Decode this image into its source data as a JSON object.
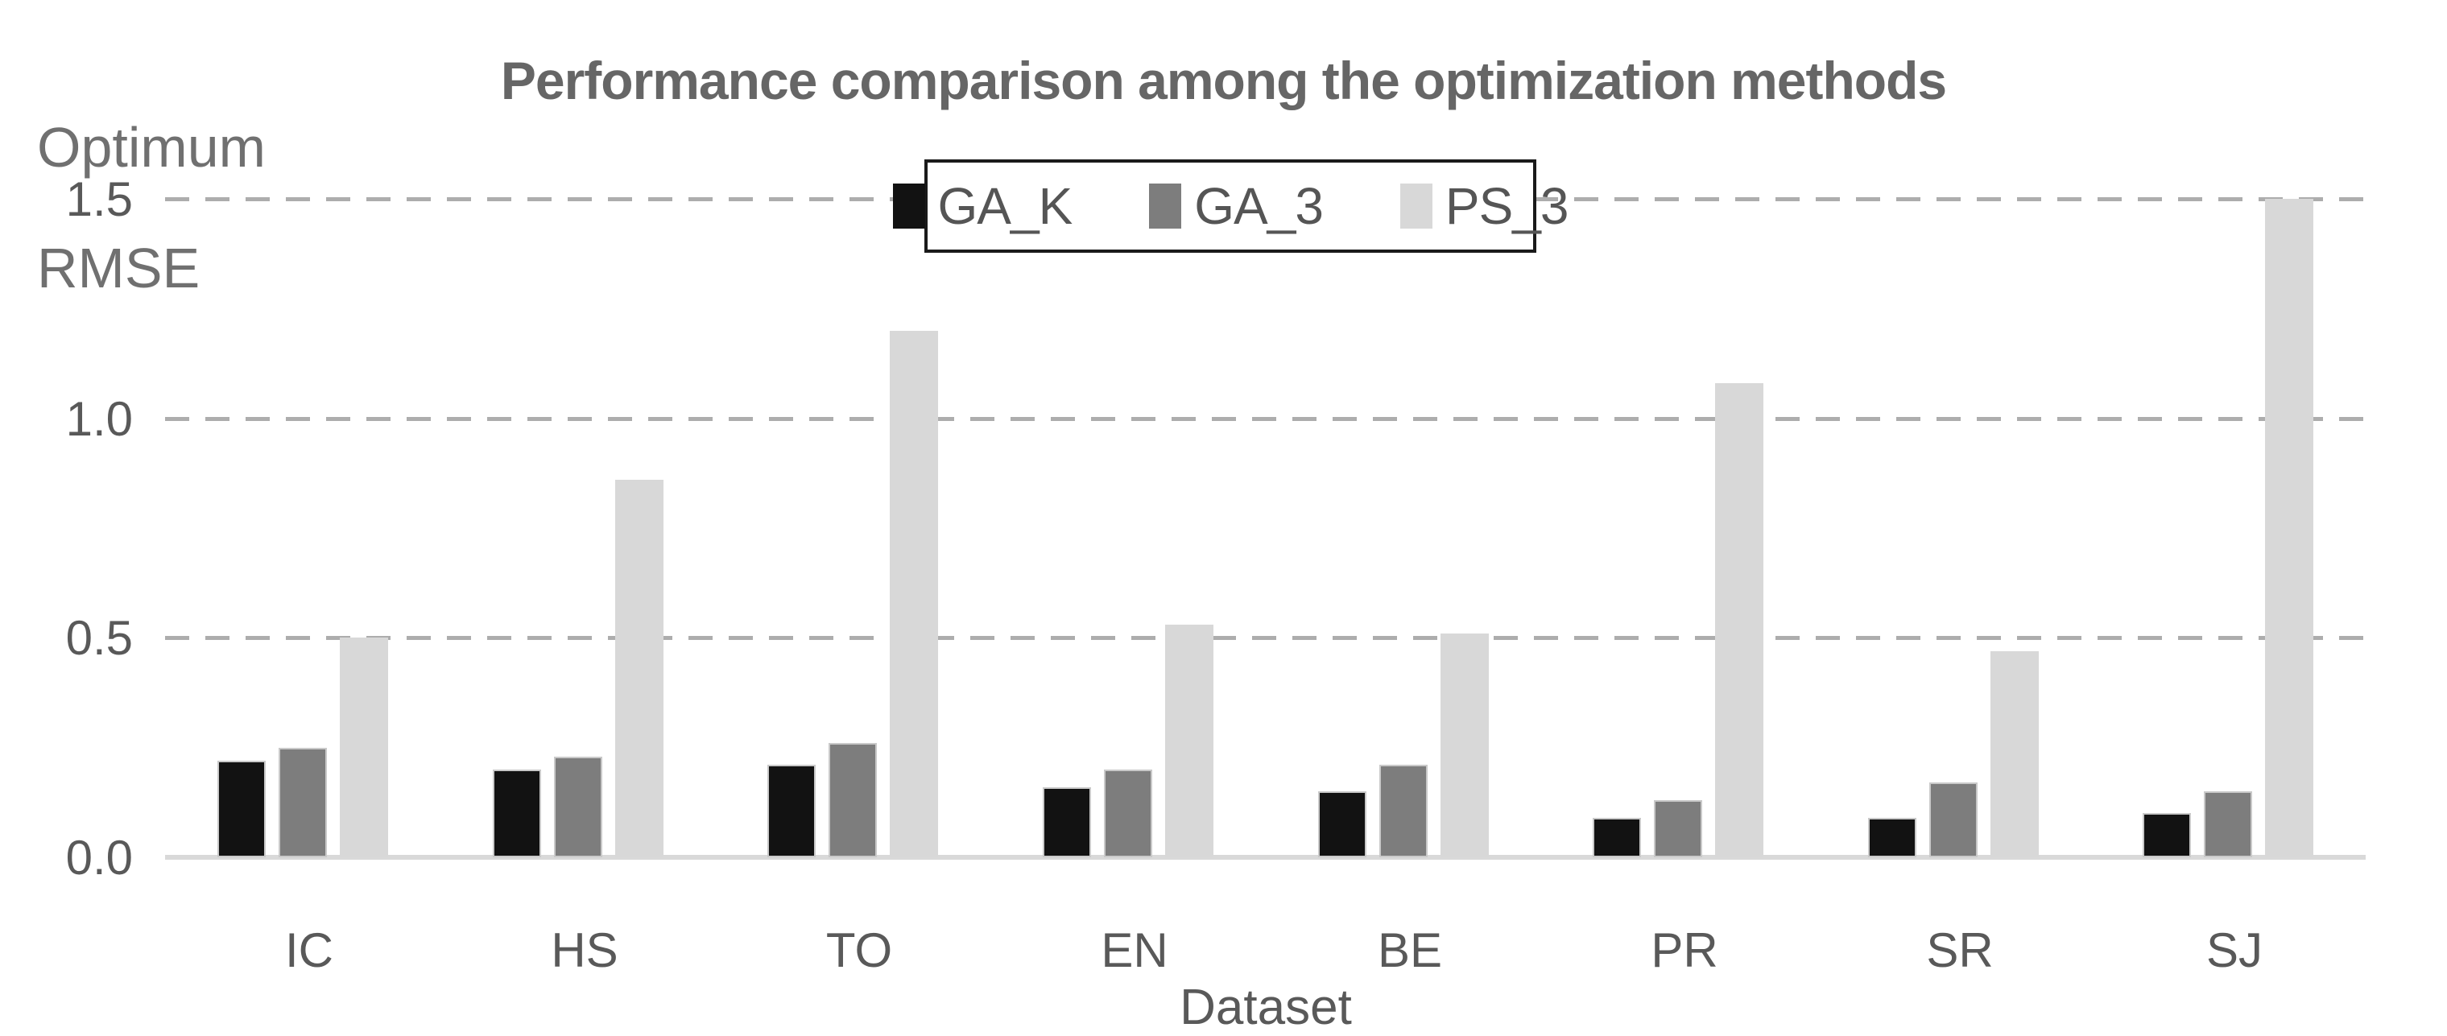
{
  "header": {
    "title": "Performance comparison among the optimization methods",
    "y_axis_title": "Optimum\nRMSE",
    "x_axis_title": "Dataset"
  },
  "legend": {
    "items": [
      {
        "label": "GA_K",
        "color": "#121212"
      },
      {
        "label": "GA_3",
        "color": "#7d7d7d"
      },
      {
        "label": "PS_3",
        "color": "#d8d8d8"
      }
    ]
  },
  "chart_data": {
    "type": "bar",
    "title": "Performance comparison among the optimization methods",
    "xlabel": "Dataset",
    "ylabel": "Optimum RMSE",
    "categories": [
      "IC",
      "HS",
      "TO",
      "EN",
      "BE",
      "PR",
      "SR",
      "SJ"
    ],
    "series": [
      {
        "name": "GA_K",
        "color": "#121212",
        "values": [
          0.22,
          0.2,
          0.21,
          0.16,
          0.15,
          0.09,
          0.09,
          0.1
        ]
      },
      {
        "name": "GA_3",
        "color": "#7d7d7d",
        "values": [
          0.25,
          0.23,
          0.26,
          0.2,
          0.21,
          0.13,
          0.17,
          0.15
        ]
      },
      {
        "name": "PS_3",
        "color": "#d8d8d8",
        "values": [
          0.5,
          0.86,
          1.2,
          0.53,
          0.51,
          1.08,
          0.47,
          1.5
        ]
      }
    ],
    "y_ticks": [
      {
        "label": "1.5",
        "value": 1.5
      },
      {
        "label": "1.0",
        "value": 1.0
      },
      {
        "label": "0.5",
        "value": 0.5
      },
      {
        "label": "0.0",
        "value": 0.0
      }
    ],
    "ylim": [
      0,
      1.5
    ],
    "grid": "horizontal-dashed",
    "legend_position": "top-center"
  },
  "colors": {
    "title_text": "#666666",
    "axis_text": "#595959",
    "gridline": "#adadad",
    "axis_line": "#d9d9d9",
    "background": "#ffffff"
  }
}
